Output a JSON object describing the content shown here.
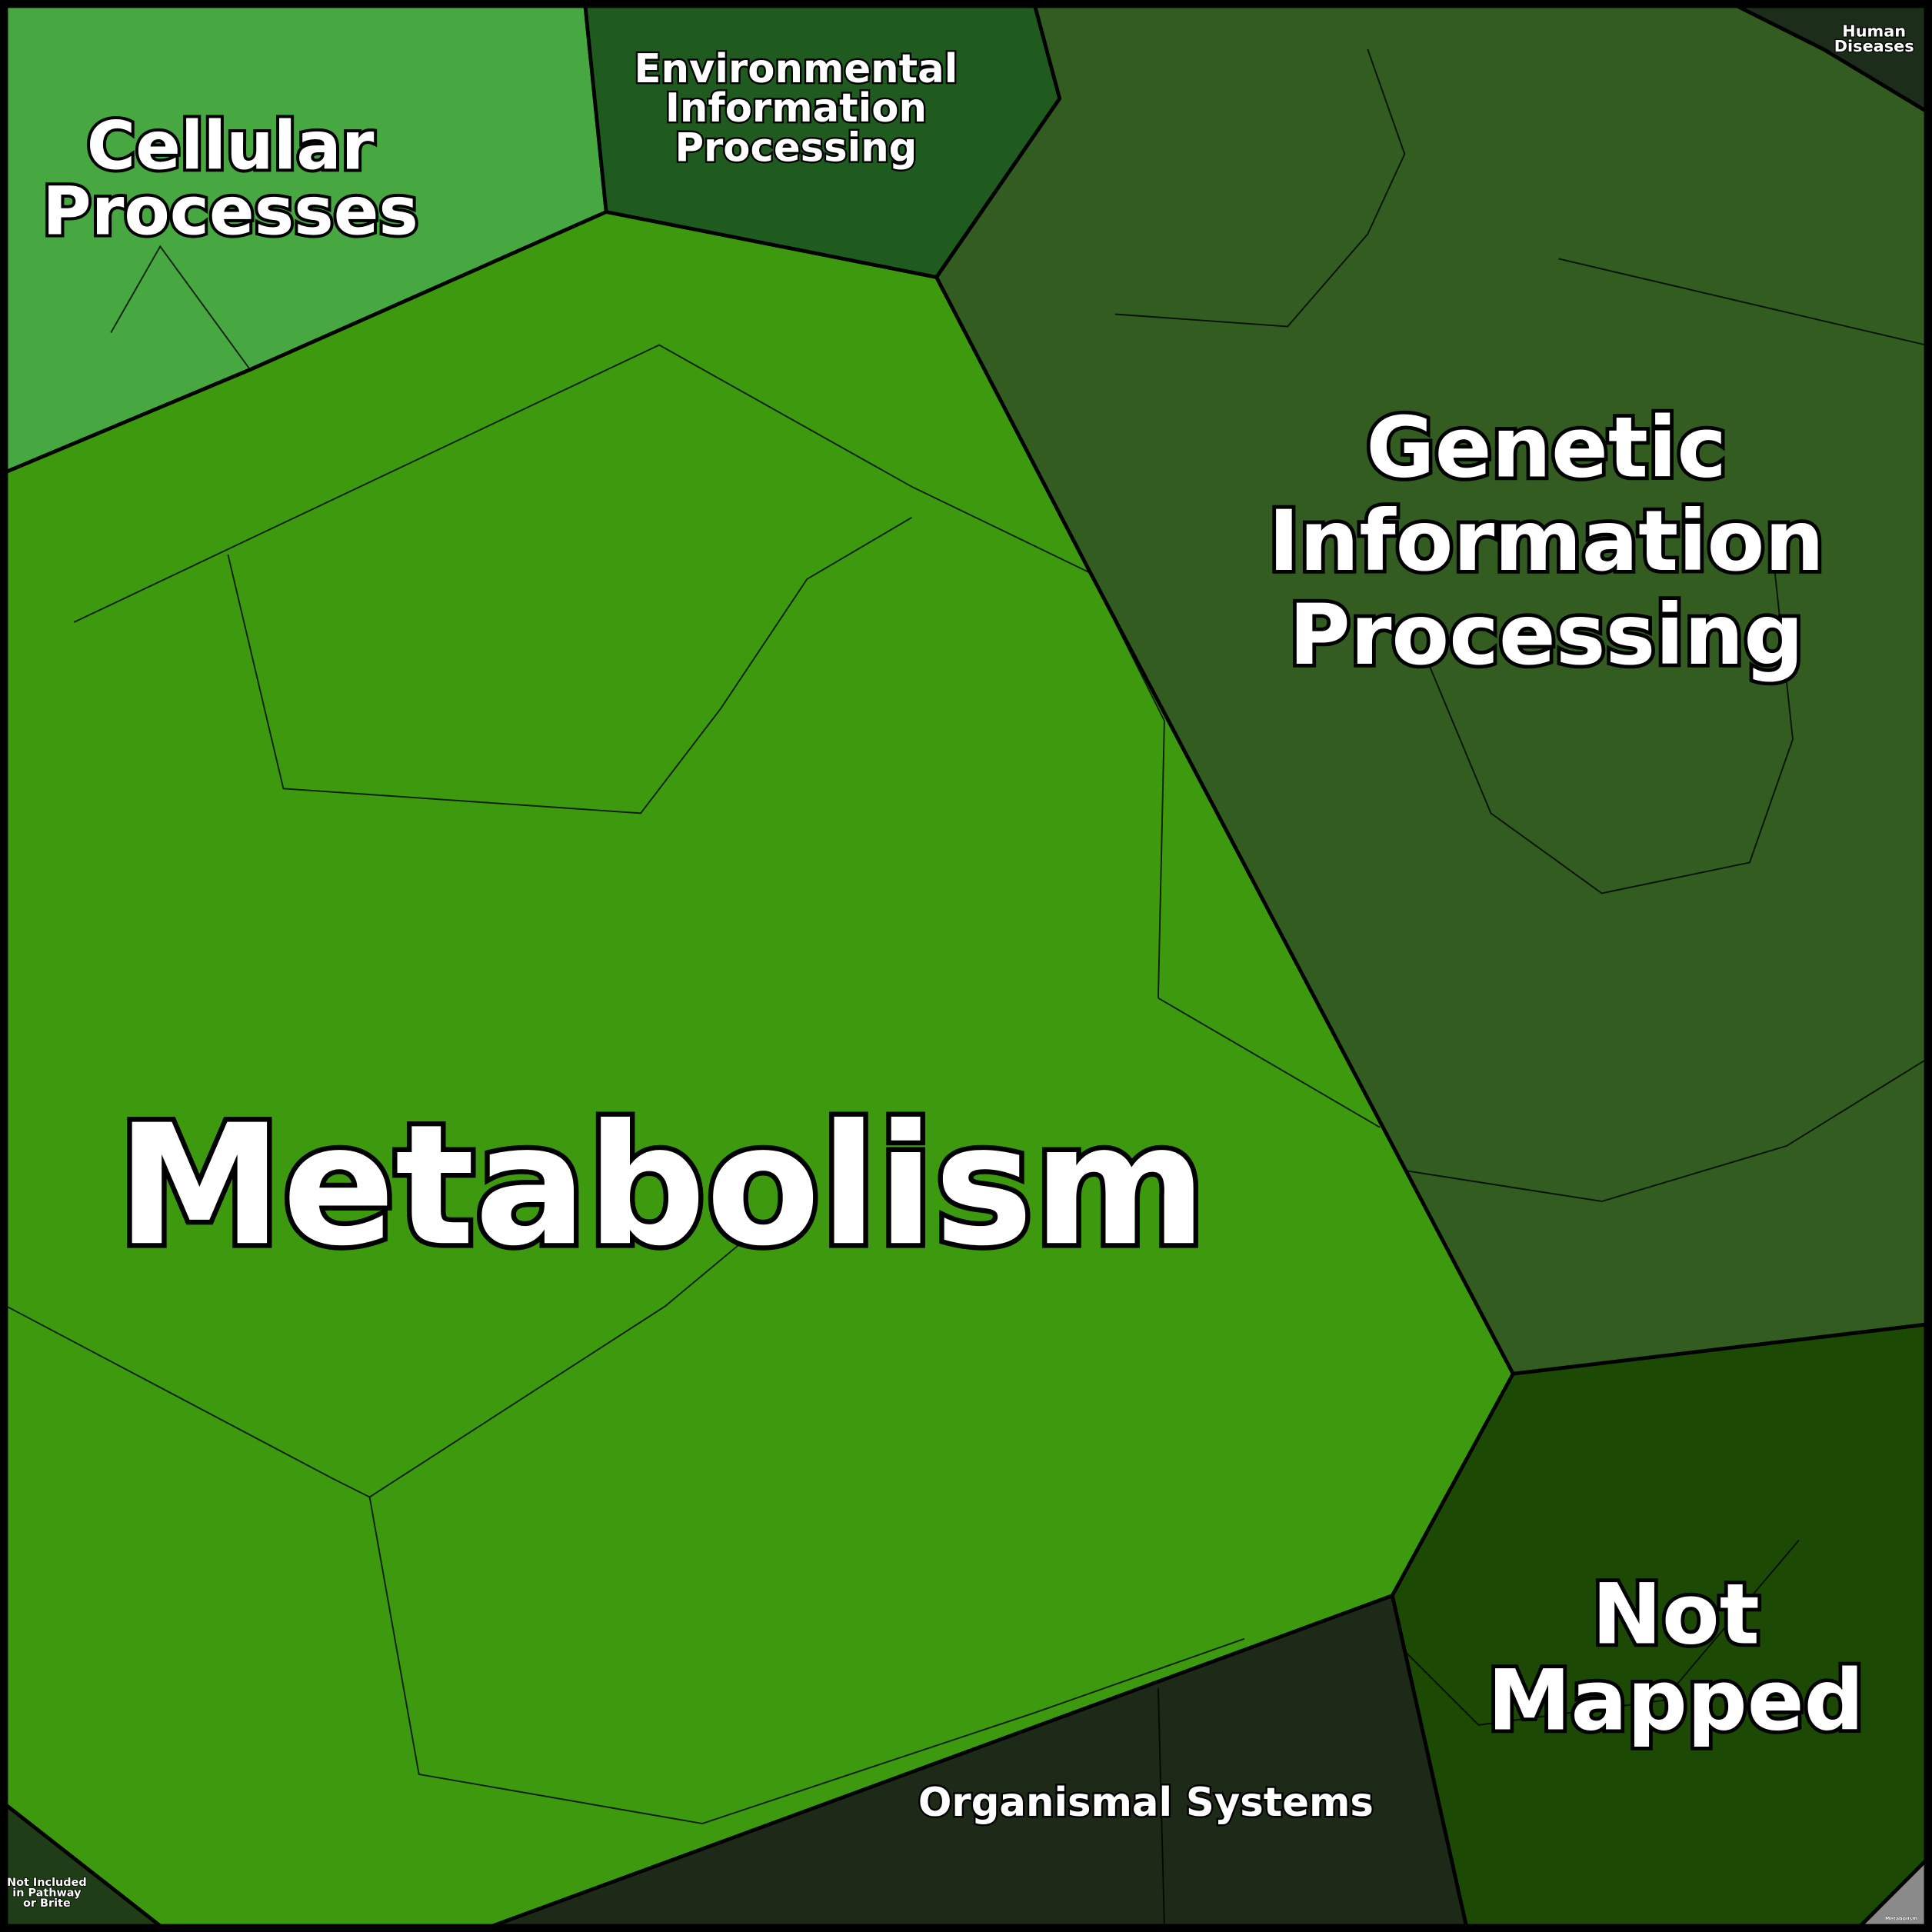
{
  "regions": {
    "cellular_processes": {
      "label": [
        "Cellular",
        "Processes"
      ]
    },
    "environmental_information_processing": {
      "label": [
        "Environmental",
        "Information",
        "Processing"
      ]
    },
    "genetic_information_processing": {
      "label": [
        "Genetic",
        "Information",
        "Processing"
      ]
    },
    "metabolism": {
      "label": [
        "Metabolism"
      ]
    },
    "not_mapped": {
      "label": [
        "Not",
        "Mapped"
      ]
    },
    "organismal_systems": {
      "label": [
        "Organismal Systems"
      ]
    },
    "human_diseases": {
      "label": [
        "Human",
        "Diseases"
      ]
    },
    "not_included": {
      "label": [
        "Not Included",
        "in Pathway",
        "or Brite"
      ]
    },
    "metabolism_small": {
      "label": [
        "Metabolism"
      ]
    }
  }
}
